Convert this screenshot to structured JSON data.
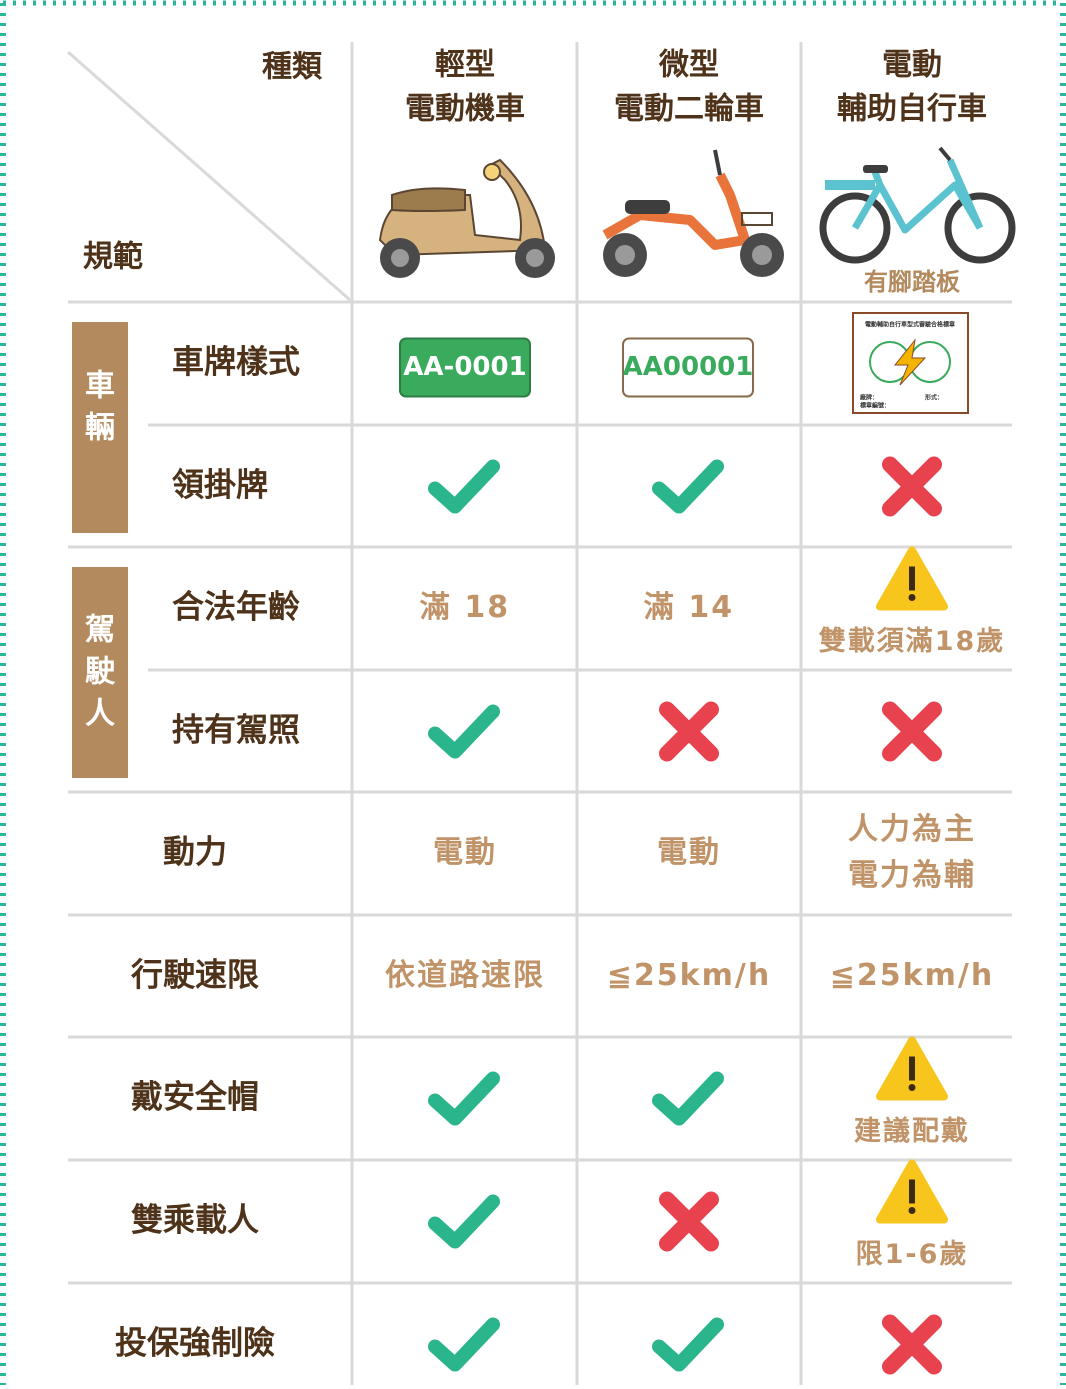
{
  "header": {
    "corner_top": "種類",
    "corner_bottom": "規範",
    "columns": [
      {
        "lines": [
          "輕型",
          "電動機車"
        ]
      },
      {
        "lines": [
          "微型",
          "電動二輪車"
        ]
      },
      {
        "lines": [
          "電動",
          "輔助自行車"
        ],
        "note": "有腳踏板"
      }
    ]
  },
  "groups": [
    {
      "label": "車輛"
    },
    {
      "label": "駕駛人"
    }
  ],
  "plates": [
    "AA-0001",
    "AA00001",
    {
      "title": "電動輔助自行車型式審驗合格標章",
      "fields": [
        "廠牌：",
        "形式：",
        "標章編號："
      ]
    }
  ],
  "rows": [
    {
      "label": "車牌樣式"
    },
    {
      "label": "領掛牌"
    },
    {
      "label": "合法年齡",
      "cells": [
        [
          "滿 18"
        ],
        [
          "滿 14"
        ],
        [
          "雙載須滿18歲"
        ]
      ]
    },
    {
      "label": "持有駕照"
    },
    {
      "label": "動力",
      "cells": [
        [
          "電動"
        ],
        [
          "電動"
        ],
        [
          "人力為主",
          "電力為輔"
        ]
      ]
    },
    {
      "label": "行駛速限",
      "cells": [
        [
          "依道路速限"
        ],
        [
          "≦25km/h"
        ],
        [
          "≦25km/h"
        ]
      ]
    },
    {
      "label": "戴安全帽",
      "cells": [
        null,
        null,
        [
          "建議配戴"
        ]
      ]
    },
    {
      "label": "雙乘載人",
      "cells": [
        null,
        null,
        [
          "限1-6歲"
        ]
      ]
    },
    {
      "label": "投保強制險"
    }
  ]
}
